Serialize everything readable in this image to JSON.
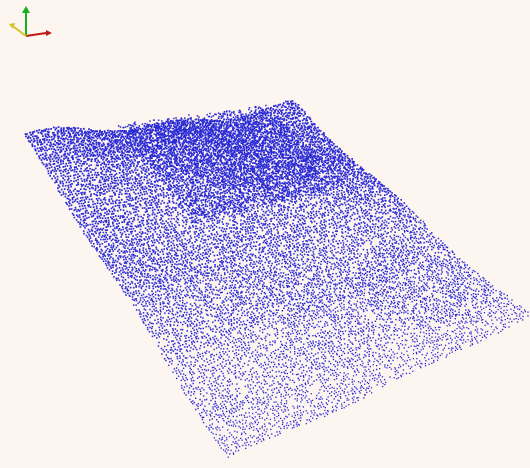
{
  "viewer": {
    "background_color": "#fdf5f0",
    "point_color": "#2b2bd6",
    "render_mode": "point-cloud",
    "content": "terrain-surface-points"
  },
  "axes_gizmo": {
    "x_axis_color": "#c01818",
    "y_axis_color": "#18b018",
    "z_axis_color": "#d8c020",
    "labels_visible": false
  }
}
